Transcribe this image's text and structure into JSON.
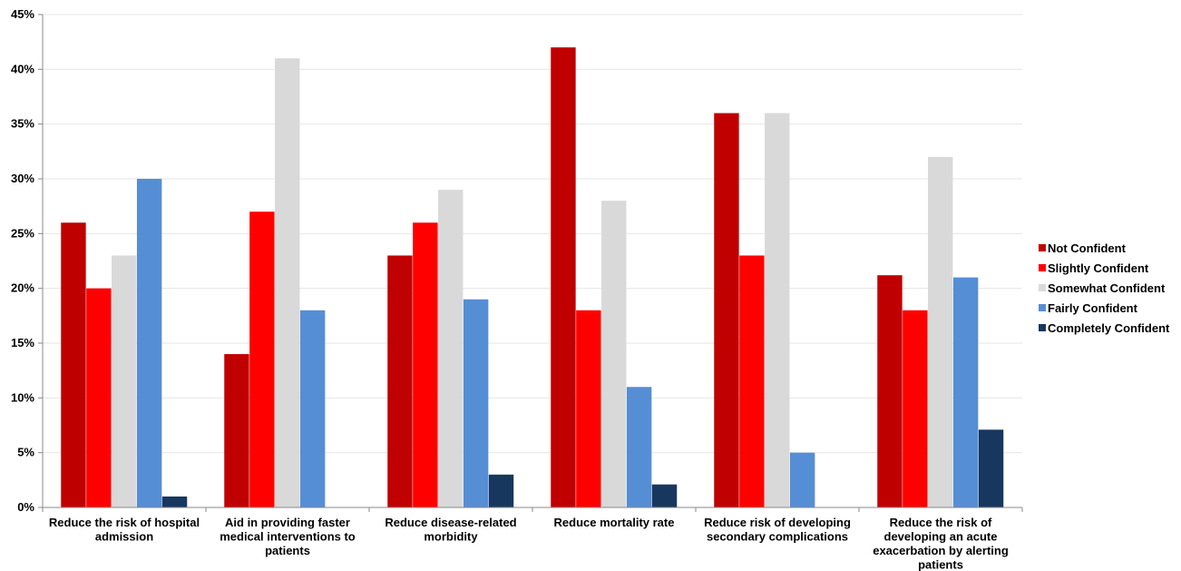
{
  "chart_data": {
    "type": "bar",
    "title": "",
    "xlabel": "",
    "ylabel": "",
    "ylim": [
      0,
      45
    ],
    "y_tick_step": 5,
    "y_tick_format": "percent",
    "grid": true,
    "legend_position": "right",
    "categories": [
      [
        "Reduce the risk of hospital",
        "admission"
      ],
      [
        "Aid in providing faster",
        "medical interventions to",
        "patients"
      ],
      [
        "Reduce disease-related",
        "morbidity"
      ],
      [
        "Reduce mortality rate"
      ],
      [
        "Reduce risk of developing",
        "secondary complications"
      ],
      [
        "Reduce the risk of",
        "developing an acute",
        "exacerbation by alerting",
        "patients"
      ]
    ],
    "series": [
      {
        "name": "Not Confident",
        "color": "#C00000",
        "values": [
          26,
          14,
          23,
          42,
          36,
          21.2
        ]
      },
      {
        "name": "Slightly Confident",
        "color": "#FF0000",
        "values": [
          20,
          27,
          26,
          18,
          23,
          18
        ]
      },
      {
        "name": "Somewhat Confident",
        "color": "#D9D9D9",
        "values": [
          23,
          41,
          29,
          28,
          36,
          32
        ]
      },
      {
        "name": "Fairly Confident",
        "color": "#558ED5",
        "values": [
          30,
          18,
          19,
          11,
          5,
          21
        ]
      },
      {
        "name": "Completely Confident",
        "color": "#17375E",
        "values": [
          1,
          0,
          3,
          2.1,
          0,
          7.1
        ]
      }
    ]
  }
}
